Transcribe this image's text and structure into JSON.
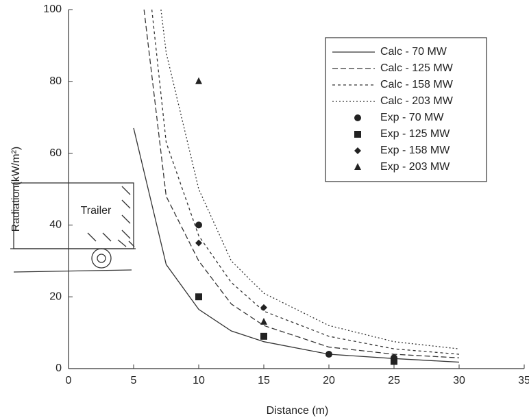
{
  "chart_data": {
    "type": "line",
    "xlabel": "Distance (m)",
    "ylabel": "Radiation(kW/m²)",
    "xlim": [
      0,
      35
    ],
    "ylim": [
      0,
      100
    ],
    "xticks": [
      0,
      5,
      10,
      15,
      20,
      25,
      30,
      35
    ],
    "yticks": [
      0,
      20,
      40,
      60,
      80,
      100
    ],
    "grid": false,
    "legend": "upper right",
    "annotations": [
      "Trailer"
    ],
    "series": [
      {
        "name": "Calc - 70 MW",
        "color": "#333333",
        "style": "solid",
        "x": [
          5,
          7.5,
          10,
          12.5,
          15,
          20,
          25,
          30
        ],
        "values": [
          67,
          29,
          16.5,
          10.5,
          7.5,
          4,
          2.8,
          1.8
        ]
      },
      {
        "name": "Calc - 125 MW",
        "color": "#333333",
        "style": "dashed",
        "x": [
          5.8,
          7.5,
          10,
          12.5,
          15,
          20,
          25,
          30
        ],
        "values": [
          100,
          48,
          30,
          18,
          12,
          6,
          4,
          3
        ]
      },
      {
        "name": "Calc - 158 MW",
        "color": "#333333",
        "style": "dotted",
        "x": [
          6.4,
          7.5,
          10,
          12.5,
          15,
          20,
          25,
          30
        ],
        "values": [
          100,
          63,
          37,
          24,
          16,
          9,
          5.5,
          4
        ]
      },
      {
        "name": "Calc - 203 MW",
        "color": "#333333",
        "style": "fine-dotted",
        "x": [
          7.1,
          7.5,
          10,
          12.5,
          15,
          20,
          25,
          30
        ],
        "values": [
          100,
          88,
          50,
          30,
          21,
          12,
          7.5,
          5.5
        ]
      },
      {
        "name": "Exp - 70 MW",
        "color": "#222222",
        "marker": "circle",
        "x": [
          10,
          20,
          25
        ],
        "values": [
          40,
          4,
          3
        ]
      },
      {
        "name": "Exp - 125 MW",
        "color": "#222222",
        "marker": "square",
        "x": [
          10,
          15,
          25
        ],
        "values": [
          20,
          9,
          2
        ]
      },
      {
        "name": "Exp - 158 MW",
        "color": "#222222",
        "marker": "diamond",
        "x": [
          10,
          15,
          25
        ],
        "values": [
          35,
          17,
          2.5
        ]
      },
      {
        "name": "Exp - 203 MW",
        "color": "#222222",
        "marker": "triangle",
        "x": [
          10,
          15,
          25
        ],
        "values": [
          80,
          13,
          2
        ]
      }
    ]
  }
}
